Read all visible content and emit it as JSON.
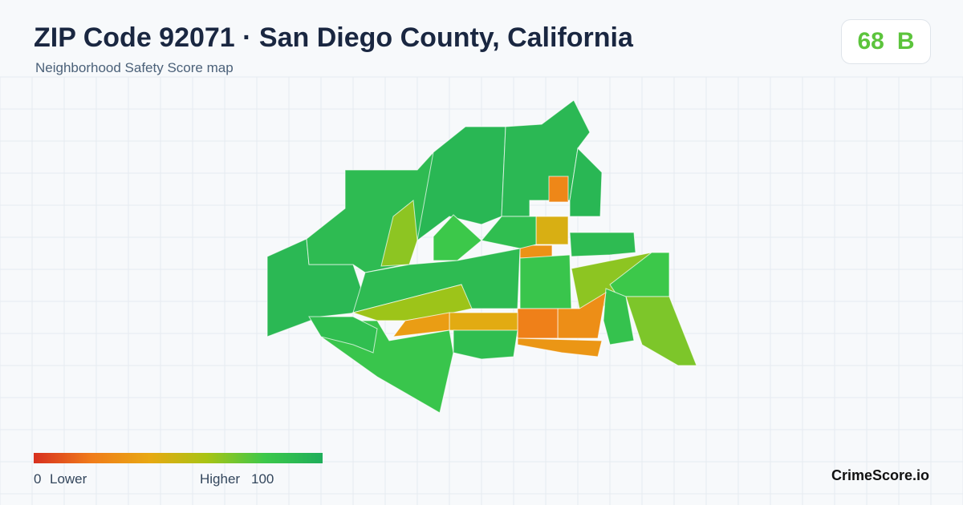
{
  "header": {
    "title": "ZIP Code 92071 · San Diego County, California",
    "subtitle": "Neighborhood Safety Score map"
  },
  "badge": {
    "score": 68,
    "grade": "B"
  },
  "legend": {
    "min": 0,
    "max": 100,
    "low_label": "Lower",
    "high_label": "Higher",
    "colors": [
      "#d7301f",
      "#f07c1a",
      "#e8a812",
      "#a8c414",
      "#3cc84a",
      "#1fae5a"
    ]
  },
  "map": {
    "neighborhood_scores": [
      92,
      90,
      93,
      92,
      93,
      25,
      45,
      30,
      88,
      65,
      80,
      90,
      62,
      82,
      90,
      65,
      80,
      68,
      85,
      28,
      22,
      32,
      42,
      35,
      82,
      88,
      88
    ]
  },
  "footer": {
    "brand": "CrimeScore.io"
  }
}
